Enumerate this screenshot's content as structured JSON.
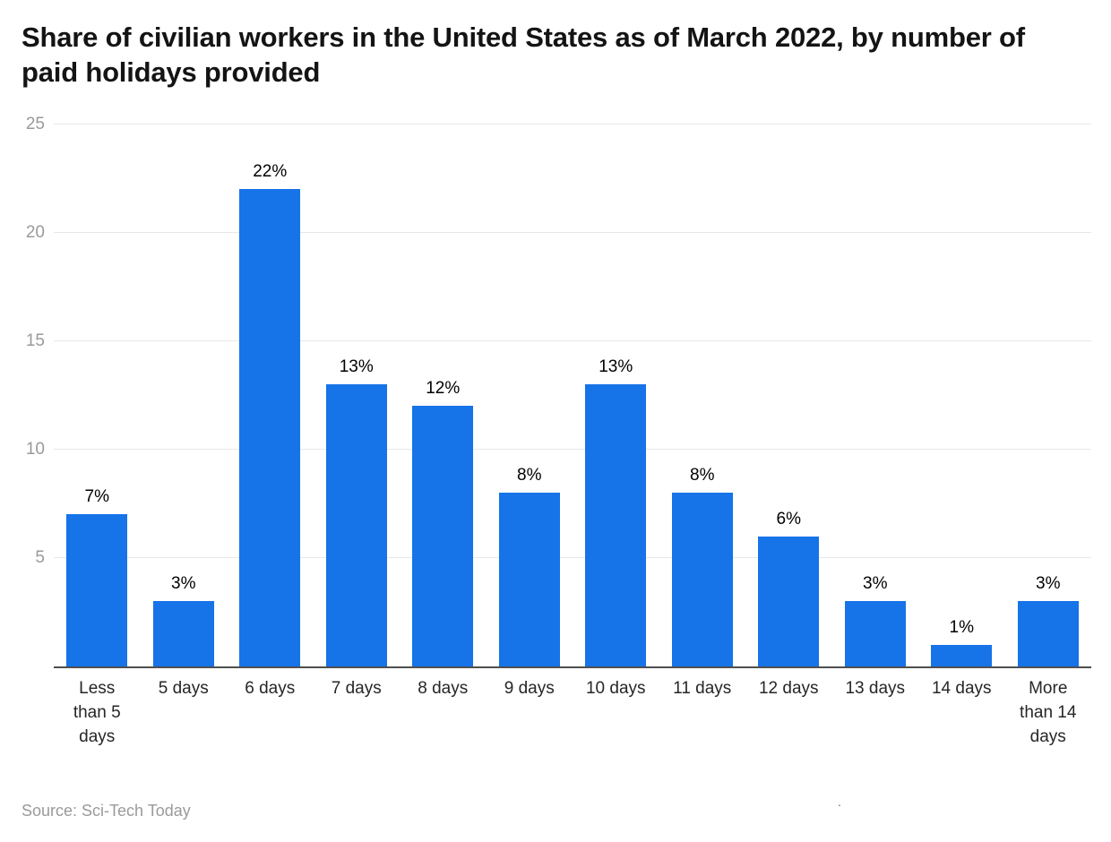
{
  "title": "Share of civilian workers in the United States as of March 2022, by number of paid holidays provided",
  "source": "Source: Sci-Tech Today",
  "footnote_dot": ".",
  "chart_data": {
    "type": "bar",
    "title": "Share of civilian workers in the United States as of March 2022, by number of paid holidays provided",
    "categories": [
      "Less than 5 days",
      "5 days",
      "6 days",
      "7 days",
      "8 days",
      "9 days",
      "10 days",
      "11 days",
      "12 days",
      "13 days",
      "14 days",
      "More than 14 days"
    ],
    "category_display": [
      "Less\nthan 5\ndays",
      "5 days",
      "6 days",
      "7 days",
      "8 days",
      "9 days",
      "10 days",
      "11 days",
      "12 days",
      "13 days",
      "14 days",
      "More\nthan 14\ndays"
    ],
    "values": [
      7,
      3,
      22,
      13,
      12,
      8,
      13,
      8,
      6,
      3,
      1,
      3
    ],
    "labels": [
      "7%",
      "3%",
      "22%",
      "13%",
      "12%",
      "8%",
      "13%",
      "8%",
      "6%",
      "3%",
      "1%",
      "3%"
    ],
    "xlabel": "",
    "ylabel": "",
    "ylim": [
      0,
      25
    ],
    "yticks": [
      5,
      10,
      15,
      20,
      25
    ],
    "grid": true,
    "legend": "none",
    "bar_color": "#1673e8",
    "grid_color": "#e8e8e8",
    "axis_color": "#4f4f4f",
    "tick_label_color": "#9a9a9a"
  }
}
